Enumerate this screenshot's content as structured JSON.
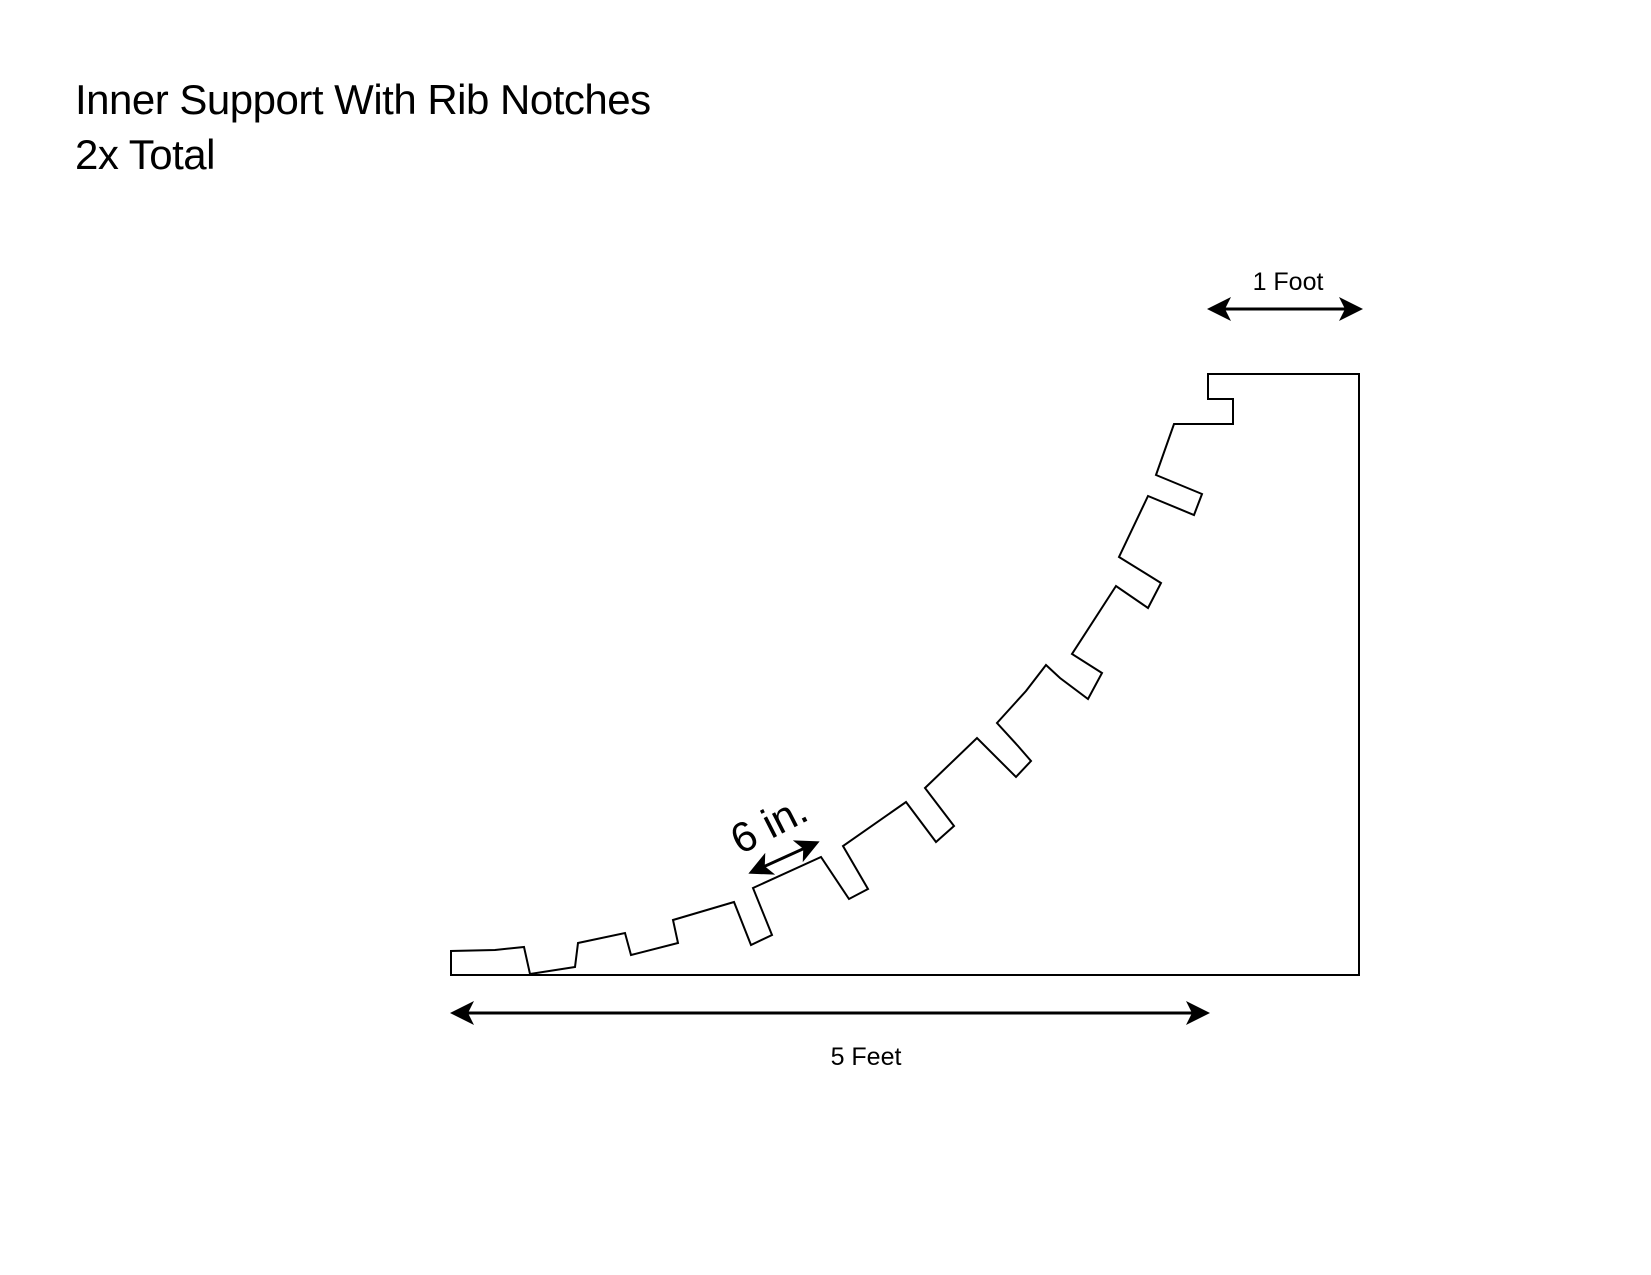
{
  "title": {
    "line1": "Inner Support With Rib Notches",
    "line2": "2x Total"
  },
  "dimensions": {
    "top_width": "1 Foot",
    "base_length": "5 Feet",
    "notch_spacing": "6 in."
  },
  "colors": {
    "stroke": "#000000",
    "background": "#ffffff"
  }
}
